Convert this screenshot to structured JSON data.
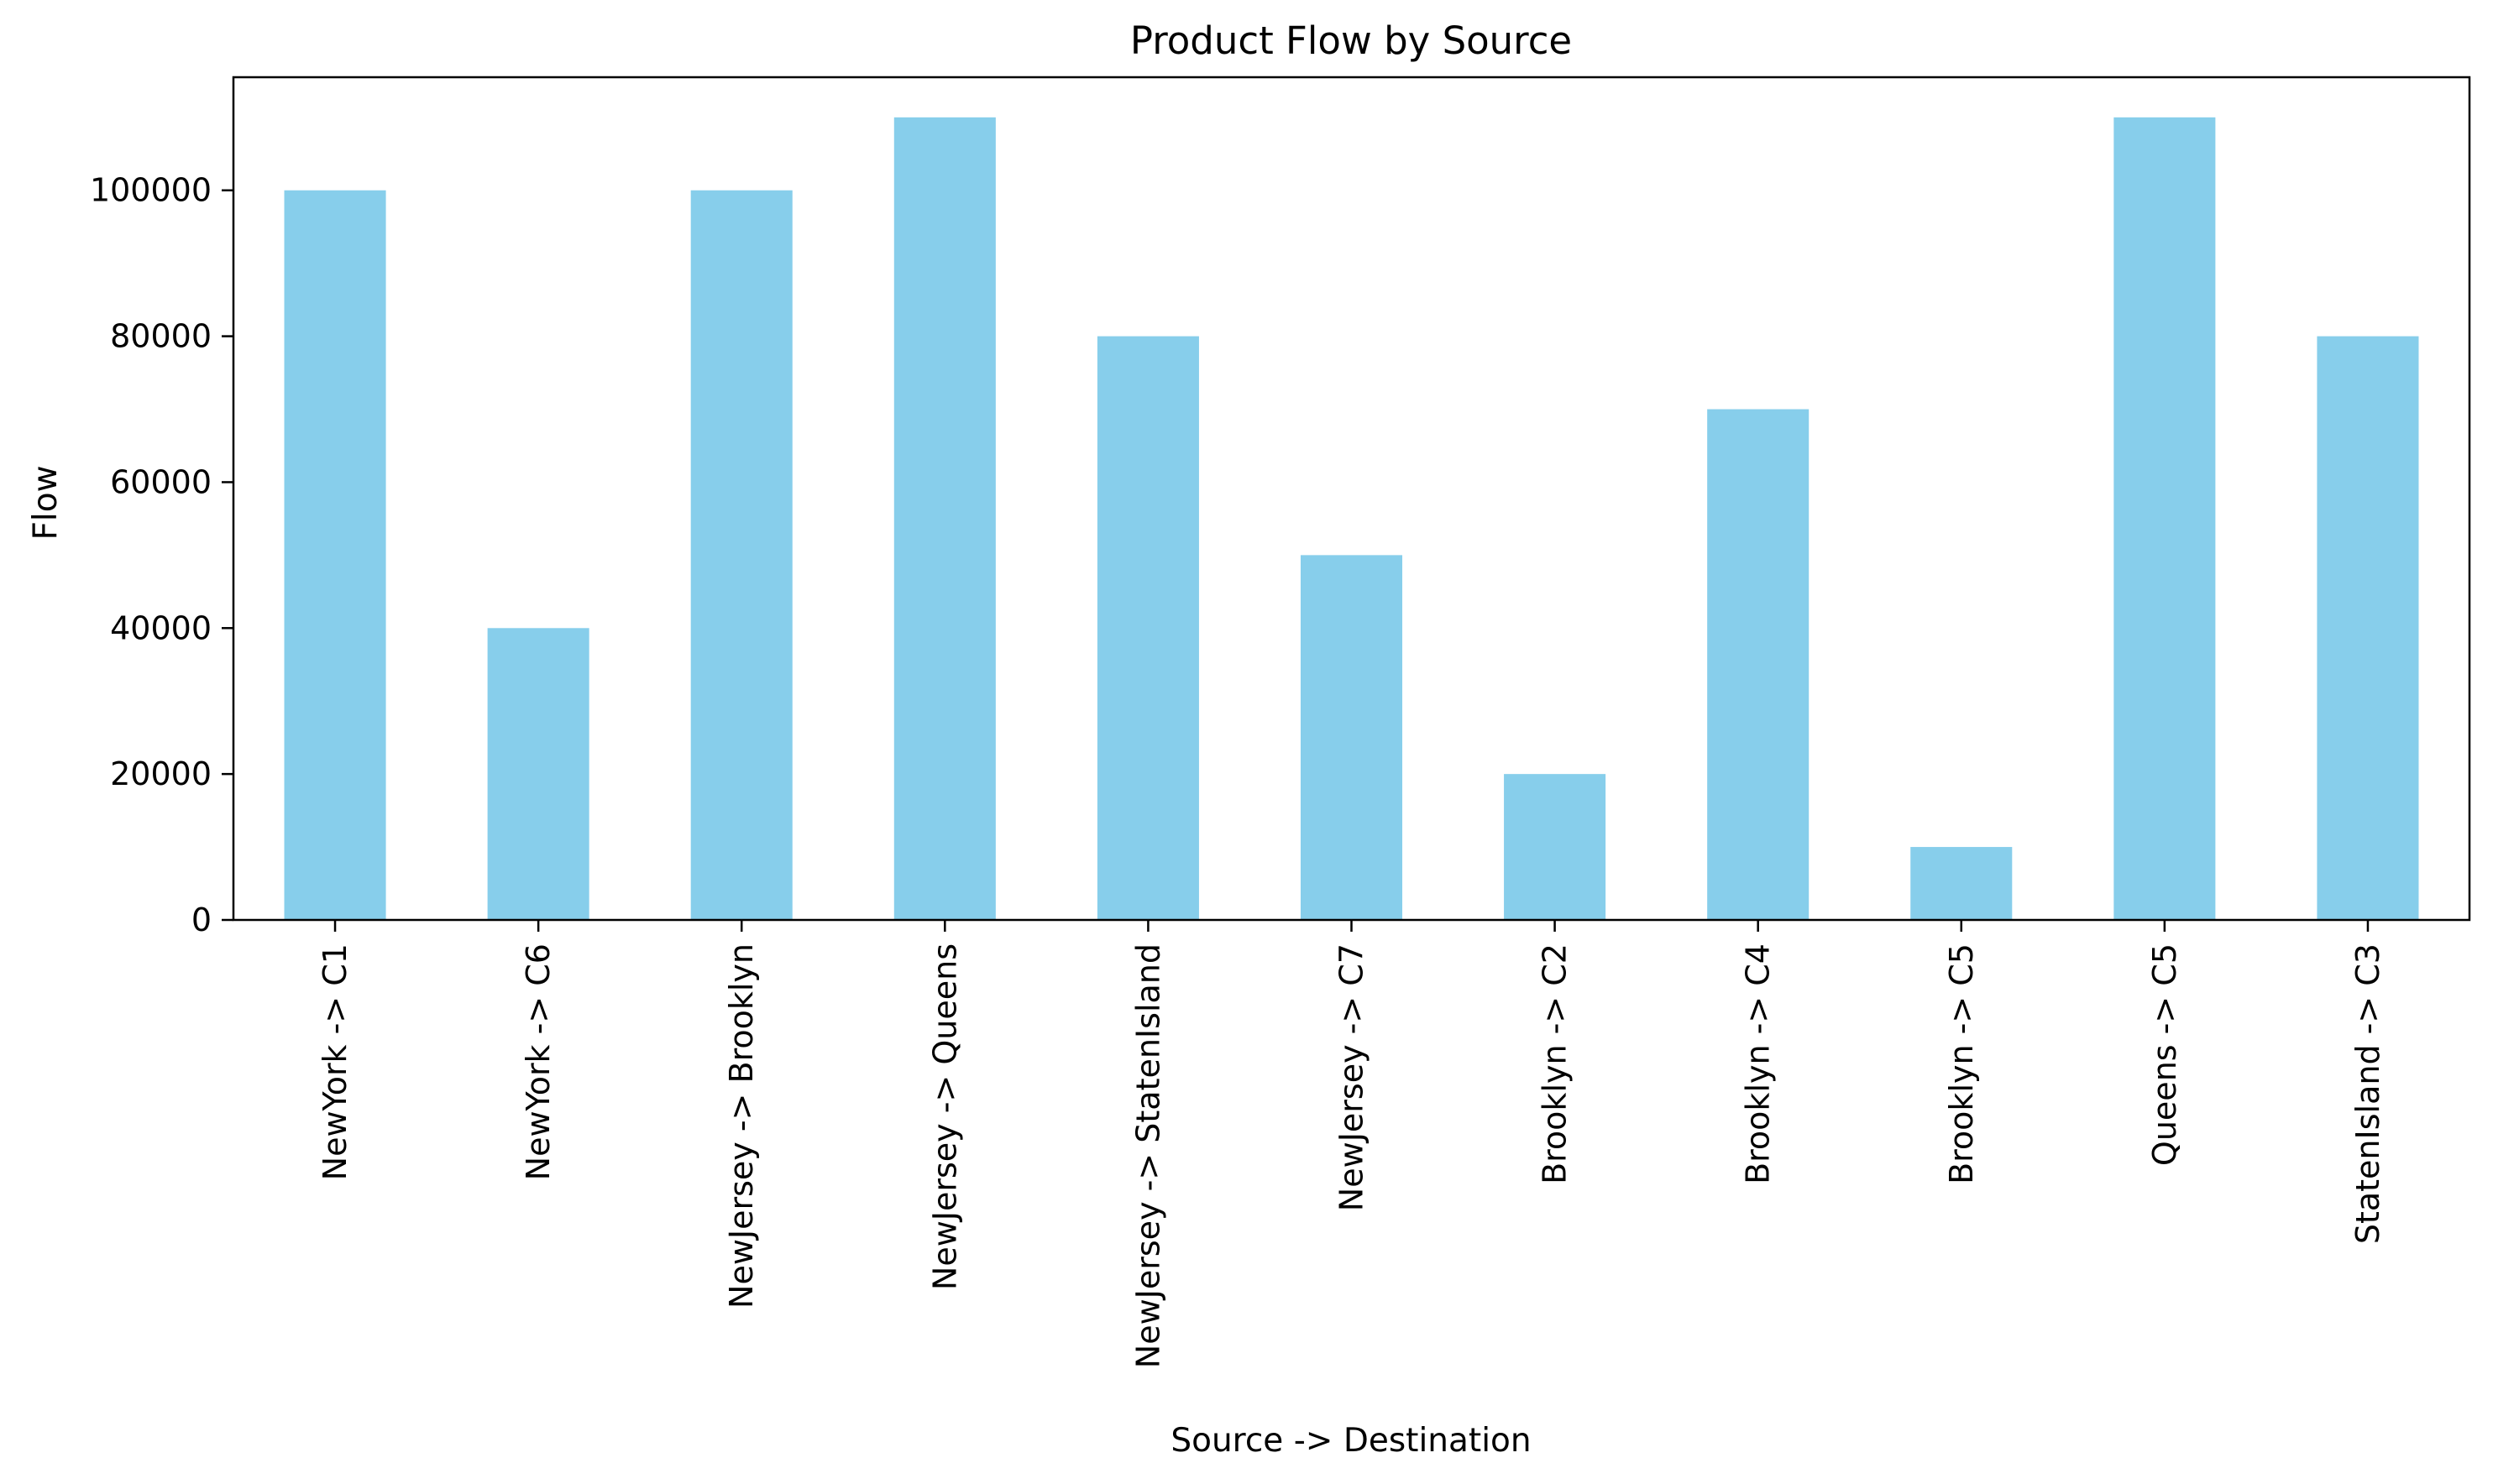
{
  "chart_data": {
    "type": "bar",
    "title": "Product Flow by Source",
    "xlabel": "Source -> Destination",
    "ylabel": "Flow",
    "categories": [
      "NewYork -> C1",
      "NewYork -> C6",
      "NewJersey -> Brooklyn",
      "NewJersey -> Queens",
      "NewJersey -> StatenIsland",
      "NewJersey -> C7",
      "Brooklyn -> C2",
      "Brooklyn -> C4",
      "Brooklyn -> C5",
      "Queens -> C5",
      "StatenIsland -> C3"
    ],
    "values": [
      100000,
      40000,
      100000,
      110000,
      80000,
      50000,
      20000,
      70000,
      10000,
      110000,
      80000
    ],
    "ylim": [
      0,
      115500
    ],
    "yticks": [
      "0",
      "20000",
      "40000",
      "60000",
      "80000",
      "100000"
    ],
    "grid": false,
    "legend": "none",
    "bar_color": "#87ceeb"
  }
}
